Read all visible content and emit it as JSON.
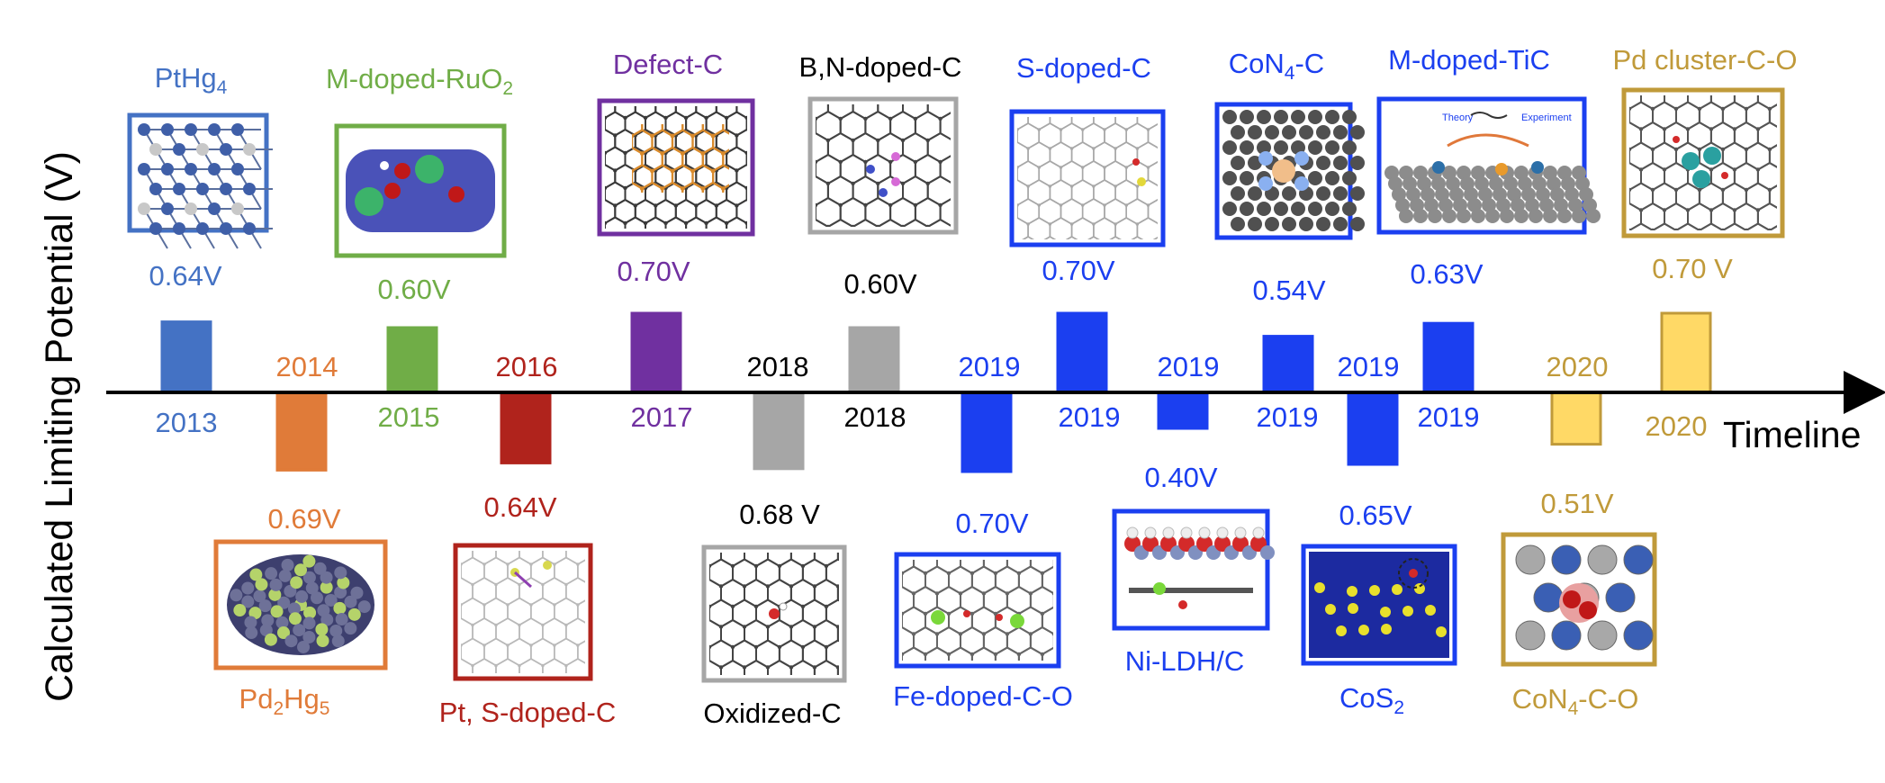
{
  "figure": {
    "y_axis_label": "Calculated Limiting Potential (V)",
    "x_axis_label": "Timeline"
  },
  "colors": {
    "axis": "#000000",
    "orange": "#e07b39",
    "green": "#70ad47",
    "red": "#b0231c",
    "purple": "#7030a0",
    "gray": "#a6a6a6",
    "steel_blue": "#4472c4",
    "bright_blue": "#1b3ff0",
    "gold": "#ffd966",
    "gold_text": "#c09a3a"
  },
  "chart_data": {
    "type": "bar",
    "orientation": "timeline",
    "items": [
      {
        "id": "pthg4",
        "material": "PtHg",
        "material_sub": "4",
        "material_after": "",
        "year_label": "2013",
        "value": 0.64,
        "value_label": "0.64V",
        "side": "above",
        "structure_icon": "pthg4-lattice"
      },
      {
        "id": "pd2hg5",
        "material": "Pd",
        "material_sub": "2",
        "material_after": "Hg",
        "material_sub2": "5",
        "year_label": "2014",
        "value": 0.69,
        "value_label": "0.69V",
        "side": "below",
        "structure_icon": "pd2hg5-cluster"
      },
      {
        "id": "ruo2",
        "material": "M-doped-RuO",
        "material_sub": "2",
        "material_after": "",
        "year_label": "2015",
        "value": 0.6,
        "value_label": "0.60V",
        "side": "above",
        "structure_icon": "ruo2-surface"
      },
      {
        "id": "pt-s-c",
        "material": "Pt, S-doped-C",
        "year_label": "2016",
        "value": 0.64,
        "value_label": "0.64V",
        "side": "below",
        "structure_icon": "pt-s-graphene"
      },
      {
        "id": "defect-c",
        "material": "Defect-C",
        "year_label": "2017",
        "value": 0.7,
        "value_label": "0.70V",
        "side": "above",
        "structure_icon": "defect-graphene"
      },
      {
        "id": "oxidized-c",
        "material": "Oxidized-C",
        "year_label": "2018",
        "value": 0.68,
        "value_label": "0.68 V",
        "side": "below",
        "structure_icon": "oxidized-graphene"
      },
      {
        "id": "bn-c",
        "material": "B,N-doped-C",
        "year_label": "2018",
        "value": 0.6,
        "value_label": "0.60V",
        "side": "above",
        "structure_icon": "bn-graphene"
      },
      {
        "id": "fe-c-o",
        "material": "Fe-doped-C-O",
        "year_label": "2019",
        "value": 0.7,
        "value_label": "0.70V",
        "side": "below",
        "structure_icon": "fe-graphene"
      },
      {
        "id": "s-c",
        "material": "S-doped-C",
        "year_label": "2019",
        "value": 0.7,
        "value_label": "0.70V",
        "side": "above",
        "structure_icon": "s-graphene"
      },
      {
        "id": "ni-ldh",
        "material": "Ni-LDH/C",
        "year_label": "2019",
        "value": 0.4,
        "value_label": "0.40V",
        "side": "below",
        "structure_icon": "ni-ldh-stack"
      },
      {
        "id": "con4-c",
        "material": "CoN",
        "material_sub": "4",
        "material_after": "-C",
        "year_label": "2019",
        "value": 0.54,
        "value_label": "0.54V",
        "side": "above",
        "structure_icon": "con4-graphene"
      },
      {
        "id": "cos2",
        "material": "CoS",
        "material_sub": "2",
        "material_after": "",
        "year_label": "2019",
        "value": 0.65,
        "value_label": "0.65V",
        "side": "below",
        "structure_icon": "cos2-crystal"
      },
      {
        "id": "m-tic",
        "material": "M-doped-TiC",
        "year_label": "2019",
        "value": 0.63,
        "value_label": "0.63V",
        "side": "above",
        "structure_icon": "tic-surface",
        "icon_labels": [
          "Theory",
          "Experiment"
        ]
      },
      {
        "id": "con4-c-o",
        "material": "CoN",
        "material_sub": "4",
        "material_after": "-C-O",
        "year_label": "2020",
        "value": 0.51,
        "value_label": "0.51V",
        "side": "below",
        "structure_icon": "con4-co-graphene"
      },
      {
        "id": "pd-cluster",
        "material": "Pd cluster-C-O",
        "year_label": "2020",
        "value": 0.7,
        "value_label": "0.70 V",
        "side": "above",
        "structure_icon": "pd-cluster-graphene"
      }
    ]
  }
}
